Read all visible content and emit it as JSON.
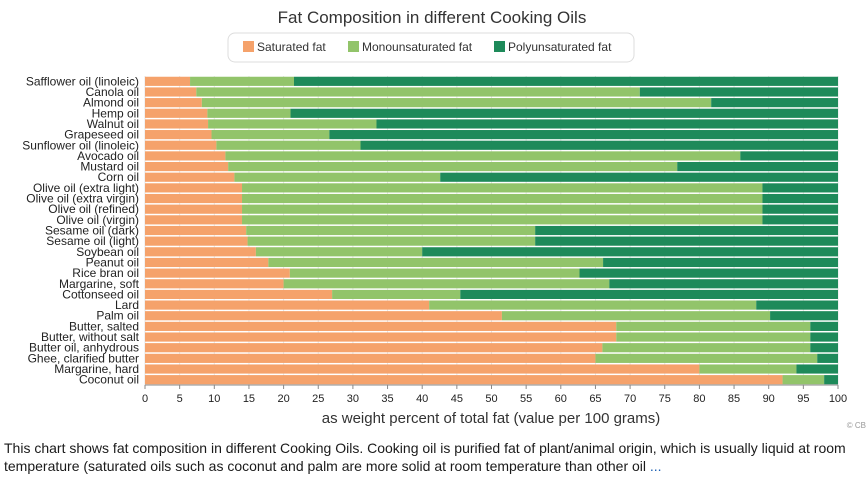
{
  "chart_data": {
    "type": "bar",
    "orientation": "horizontal",
    "stacked": true,
    "title": "Fat Composition in different Cooking Oils",
    "xlabel": "as weight percent of total fat (value per 100 grams)",
    "ylabel": "",
    "xlim": [
      0,
      100
    ],
    "xticks": [
      0,
      5,
      10,
      15,
      20,
      25,
      30,
      35,
      40,
      45,
      50,
      55,
      60,
      65,
      70,
      75,
      80,
      85,
      90,
      95,
      100
    ],
    "legend_position": "top-center",
    "grid": "vertical",
    "credit": "© CB",
    "categories": [
      "Safflower oil (linoleic)",
      "Canola oil",
      "Almond oil",
      "Hemp oil",
      "Walnut oil",
      "Grapeseed oil",
      "Sunflower oil (linoleic)",
      "Avocado oil",
      "Mustard oil",
      "Corn oil",
      "Olive oil (extra light)",
      "Olive oil (extra virgin)",
      "Olive oil (refined)",
      "Olive oil (virgin)",
      "Sesame oil (dark)",
      "Sesame oil (light)",
      "Soybean oil",
      "Peanut oil",
      "Rice bran oil",
      "Margarine, soft",
      "Cottonseed oil",
      "Lard",
      "Palm oil",
      "Butter, salted",
      "Butter, without salt",
      "Butter oil, anhydrous",
      "Ghee, clarified butter",
      "Margarine, hard",
      "Coconut oil"
    ],
    "series": [
      {
        "name": "Saturated fat",
        "color": "#f5a26b",
        "values": [
          6.5,
          7.4,
          8.2,
          9.0,
          9.1,
          9.6,
          10.3,
          11.6,
          12.0,
          12.9,
          14.0,
          14.0,
          14.0,
          14.0,
          14.6,
          14.8,
          16.0,
          17.8,
          20.9,
          20.0,
          27.0,
          41.0,
          51.5,
          68.0,
          68.0,
          66.0,
          65.0,
          80.0,
          92.0
        ]
      },
      {
        "name": "Monounsaturated fat",
        "color": "#92c46a",
        "values": [
          15.0,
          64.0,
          73.5,
          12.0,
          24.3,
          17.0,
          20.8,
          74.3,
          64.8,
          29.7,
          75.1,
          75.1,
          75.1,
          75.1,
          41.7,
          41.5,
          24.0,
          48.3,
          41.8,
          47.0,
          18.5,
          47.2,
          38.7,
          28.0,
          28.0,
          30.0,
          32.0,
          14.0,
          6.0
        ]
      },
      {
        "name": "Polyunsaturated fat",
        "color": "#1e8a5a",
        "values": [
          78.5,
          28.6,
          18.3,
          79.0,
          66.6,
          73.4,
          68.9,
          14.1,
          23.2,
          57.4,
          10.9,
          10.9,
          10.9,
          10.9,
          43.7,
          43.7,
          60.0,
          33.9,
          37.3,
          33.0,
          54.5,
          11.8,
          9.8,
          4.0,
          4.0,
          4.0,
          3.0,
          6.0,
          2.0
        ]
      }
    ]
  },
  "description": {
    "text": "This chart shows fat composition in different Cooking Oils. Cooking oil is purified fat of plant/animal origin, which is usually liquid at room temperature (saturated oils such as coconut and palm are more solid at room temperature than other oil",
    "more_link": "..."
  }
}
